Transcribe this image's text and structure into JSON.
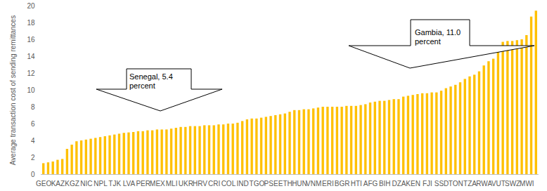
{
  "chart_data": {
    "type": "bar",
    "y_label": "Average transaction cost of sending remittances",
    "categories": [
      "GEO",
      null,
      null,
      "KAZ",
      null,
      null,
      "KGZ",
      null,
      null,
      "NIC",
      null,
      null,
      "NPL",
      null,
      null,
      "TJK",
      null,
      null,
      "LVA",
      null,
      null,
      "PER",
      null,
      null,
      "MEX",
      null,
      null,
      "MLI",
      null,
      null,
      "UKR",
      null,
      null,
      "HRV",
      null,
      null,
      "CRI",
      null,
      null,
      "COL",
      null,
      null,
      "IND",
      null,
      null,
      "TGO",
      null,
      null,
      "PSE",
      null,
      null,
      "ETH",
      null,
      null,
      "HUN",
      null,
      null,
      "VNM",
      null,
      null,
      "ERI",
      null,
      null,
      "BGR",
      null,
      null,
      "HTI",
      null,
      null,
      "AFG",
      null,
      null,
      "BIH",
      null,
      null,
      "DZA",
      null,
      null,
      "KEN",
      null,
      null,
      "FJI",
      null,
      null,
      "SSD",
      null,
      null,
      "TON",
      null,
      null,
      "TZA",
      null,
      null,
      "RWA",
      null,
      null,
      "VUT",
      null,
      null,
      "SWZ",
      null,
      null,
      "MWI",
      null,
      null
    ],
    "values": [
      1.3,
      1.4,
      1.5,
      1.7,
      1.8,
      3.0,
      3.5,
      3.9,
      4.0,
      4.1,
      4.2,
      4.3,
      4.4,
      4.5,
      4.6,
      4.7,
      4.8,
      4.9,
      4.95,
      5.0,
      5.1,
      5.1,
      5.2,
      5.2,
      5.3,
      5.3,
      5.3,
      5.4,
      5.5,
      5.6,
      5.6,
      5.7,
      5.7,
      5.7,
      5.8,
      5.8,
      5.8,
      5.9,
      5.9,
      6.0,
      6.0,
      6.1,
      6.3,
      6.5,
      6.6,
      6.6,
      6.7,
      6.8,
      6.9,
      7.0,
      7.1,
      7.2,
      7.4,
      7.6,
      7.6,
      7.7,
      7.7,
      7.8,
      7.9,
      8.0,
      8.0,
      8.0,
      8.0,
      8.0,
      8.1,
      8.1,
      8.1,
      8.2,
      8.3,
      8.5,
      8.6,
      8.7,
      8.7,
      8.8,
      8.9,
      8.9,
      9.2,
      9.3,
      9.4,
      9.5,
      9.6,
      9.6,
      9.7,
      9.7,
      9.9,
      10.2,
      10.4,
      10.6,
      10.9,
      11.3,
      11.6,
      11.8,
      12.2,
      12.9,
      13.4,
      13.7,
      14.5,
      15.7,
      15.8,
      15.8,
      15.9,
      16.0,
      16.5,
      18.7,
      19.4
    ],
    "color": "#ffc000",
    "ylim": [
      0,
      20
    ],
    "yticks": [
      0,
      2,
      4,
      6,
      8,
      10,
      12,
      14,
      16,
      18,
      20
    ],
    "grid": false,
    "annotations": [
      "Senegal, 5.4 percent",
      "Gambia, 11.0 percent"
    ]
  }
}
